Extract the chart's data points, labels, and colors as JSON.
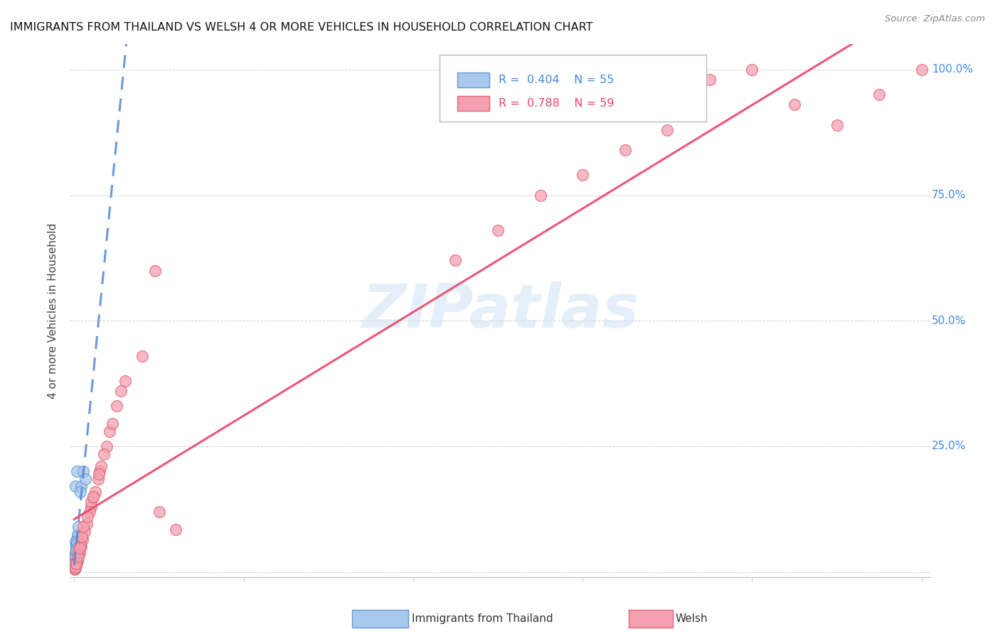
{
  "title": "IMMIGRANTS FROM THAILAND VS WELSH 4 OR MORE VEHICLES IN HOUSEHOLD CORRELATION CHART",
  "source": "Source: ZipAtlas.com",
  "ylabel": "4 or more Vehicles in Household",
  "watermark": "ZIPatlas",
  "blue_color": "#a8c8ee",
  "pink_color": "#f4a0b0",
  "blue_line_color": "#5588cc",
  "pink_line_color": "#ee4466",
  "blue_edge_color": "#6699cc",
  "pink_edge_color": "#dd6677",
  "legend_blue_text_color": "#4488dd",
  "legend_pink_text_color": "#ee4466",
  "yaxis_label_color": "#4488dd",
  "blue_N": 55,
  "pink_N": 59,
  "blue_R": 0.404,
  "pink_R": 0.788,
  "blue_x": [
    0.0008,
    0.0012,
    0.0005,
    0.0018,
    0.001,
    0.0022,
    0.0015,
    0.003,
    0.0009,
    0.0007,
    0.0004,
    0.0035,
    0.0014,
    0.0011,
    0.002,
    0.0025,
    0.0008,
    0.0006,
    0.0012,
    0.0016,
    0.0028,
    0.0019,
    0.0032,
    0.0007,
    0.0013,
    0.0021,
    0.0024,
    0.0017,
    0.0004,
    0.0009,
    0.0038,
    0.0013,
    0.0016,
    0.002,
    0.0008,
    0.0026,
    0.0012,
    0.0029,
    0.0015,
    0.0005,
    0.0009,
    0.0011,
    0.0023,
    0.0019,
    0.0033,
    0.0015,
    0.0012,
    0.0007,
    0.0004,
    0.0021,
    0.005,
    0.008,
    0.007,
    0.011,
    0.013
  ],
  "blue_y": [
    0.02,
    0.03,
    0.012,
    0.04,
    0.025,
    0.045,
    0.035,
    0.06,
    0.022,
    0.018,
    0.01,
    0.07,
    0.032,
    0.028,
    0.042,
    0.05,
    0.02,
    0.015,
    0.025,
    0.038,
    0.055,
    0.04,
    0.065,
    0.018,
    0.03,
    0.042,
    0.048,
    0.036,
    0.01,
    0.022,
    0.075,
    0.028,
    0.06,
    0.055,
    0.018,
    0.052,
    0.03,
    0.058,
    0.17,
    0.012,
    0.02,
    0.025,
    0.046,
    0.042,
    0.2,
    0.035,
    0.028,
    0.018,
    0.01,
    0.042,
    0.09,
    0.17,
    0.16,
    0.2,
    0.185
  ],
  "pink_x": [
    0.001,
    0.0015,
    0.002,
    0.003,
    0.0025,
    0.004,
    0.0035,
    0.005,
    0.006,
    0.008,
    0.01,
    0.012,
    0.015,
    0.02,
    0.025,
    0.03,
    0.02,
    0.018,
    0.022,
    0.028,
    0.032,
    0.038,
    0.042,
    0.05,
    0.06,
    0.08,
    0.1,
    0.12,
    0.005,
    0.007,
    0.009,
    0.011,
    0.016,
    0.022,
    0.029,
    0.035,
    0.045,
    0.0007,
    0.0012,
    0.0018,
    0.055,
    0.0008,
    0.0014,
    0.0022,
    0.0045,
    0.0065,
    0.095,
    0.75,
    0.8,
    0.85,
    0.9,
    0.95,
    1.0,
    0.7,
    0.65,
    0.6,
    0.55,
    0.5,
    0.45
  ],
  "pink_y": [
    0.008,
    0.01,
    0.015,
    0.02,
    0.018,
    0.025,
    0.022,
    0.032,
    0.038,
    0.05,
    0.065,
    0.08,
    0.095,
    0.13,
    0.16,
    0.2,
    0.14,
    0.12,
    0.15,
    0.185,
    0.21,
    0.25,
    0.28,
    0.33,
    0.38,
    0.43,
    0.12,
    0.085,
    0.04,
    0.055,
    0.07,
    0.09,
    0.11,
    0.15,
    0.195,
    0.235,
    0.295,
    0.005,
    0.009,
    0.014,
    0.36,
    0.006,
    0.01,
    0.017,
    0.03,
    0.048,
    0.6,
    0.98,
    1.0,
    0.93,
    0.89,
    0.95,
    1.0,
    0.88,
    0.84,
    0.79,
    0.75,
    0.68,
    0.62
  ]
}
